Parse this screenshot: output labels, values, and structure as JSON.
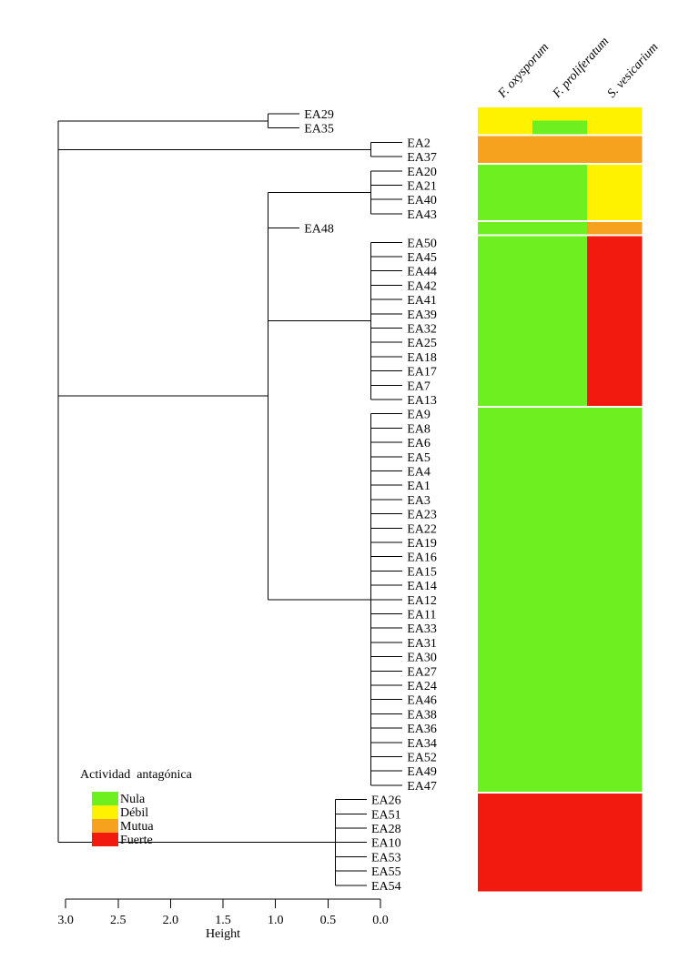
{
  "chart_data": {
    "type": "heatmap",
    "subtype": "dendrogram-with-heatmap",
    "xlabel": "Height",
    "xlim": [
      3.0,
      0.0
    ],
    "x_ticks": [
      "3.0",
      "2.5",
      "2.0",
      "1.5",
      "1.0",
      "0.5",
      "0.0"
    ],
    "x_tick_values": [
      3.0,
      2.5,
      2.0,
      1.5,
      1.0,
      0.5,
      0.0
    ],
    "leaf_hang": 0.3,
    "columns": [
      "F. oxysporum",
      "F. proliferatum",
      "S. vesicarium"
    ],
    "legend": {
      "title": "Actividad  antagónica",
      "placement": "bottom-left",
      "levels": [
        {
          "name": "Nula",
          "color": "#6ef020"
        },
        {
          "name": "Débil",
          "color": "#fff200"
        },
        {
          "name": "Mutua",
          "color": "#f7a21e"
        },
        {
          "name": "Fuerte",
          "color": "#f2190e"
        }
      ]
    },
    "tree": {
      "height": 3.07,
      "children": [
        {
          "height": 1.07,
          "children": [
            "EA29",
            "EA35"
          ]
        },
        {
          "height": 0.09,
          "children": [
            "EA2",
            "EA37"
          ]
        },
        {
          "height": 1.07,
          "children": [
            {
              "height": 0.09,
              "children": [
                "EA20",
                "EA21",
                "EA40",
                "EA43"
              ]
            },
            "EA48",
            {
              "height": 0.09,
              "children": [
                "EA50",
                "EA45",
                "EA44",
                "EA42",
                "EA41",
                "EA39",
                "EA32",
                "EA25",
                "EA18",
                "EA17",
                "EA7",
                "EA13"
              ]
            },
            {
              "height": 0.09,
              "children": [
                "EA9",
                "EA8",
                "EA6",
                "EA5",
                "EA4",
                "EA1",
                "EA3",
                "EA23",
                "EA22",
                "EA19",
                "EA16",
                "EA15",
                "EA14",
                "EA12",
                "EA11",
                "EA33",
                "EA31",
                "EA30",
                "EA27",
                "EA24",
                "EA46",
                "EA38",
                "EA36",
                "EA34",
                "EA52",
                "EA49",
                "EA47"
              ]
            }
          ]
        },
        {
          "height": 0.43,
          "children": [
            "EA26",
            "EA51",
            "EA28",
            "EA10",
            "EA53",
            "EA55",
            "EA54"
          ]
        }
      ]
    },
    "heatmap_groups": [
      {
        "leaves": [
          "EA29",
          "EA35"
        ],
        "values": [
          [
            "Débil",
            "Débil",
            "Débil"
          ],
          [
            "Débil",
            "Nula",
            "Débil"
          ]
        ]
      },
      {
        "leaves": [
          "EA2",
          "EA37"
        ],
        "values": [
          [
            "Mutua",
            "Mutua",
            "Mutua"
          ],
          [
            "Mutua",
            "Mutua",
            "Mutua"
          ]
        ]
      },
      {
        "leaves": [
          "EA20",
          "EA21",
          "EA40",
          "EA43"
        ],
        "all": [
          "Nula",
          "Nula",
          "Débil"
        ]
      },
      {
        "leaves": [
          "EA48"
        ],
        "all": [
          "Nula",
          "Nula",
          "Mutua"
        ]
      },
      {
        "leaves": [
          "EA50",
          "EA45",
          "EA44",
          "EA42",
          "EA41",
          "EA39",
          "EA32",
          "EA25",
          "EA18",
          "EA17",
          "EA7",
          "EA13"
        ],
        "all": [
          "Nula",
          "Nula",
          "Fuerte"
        ]
      },
      {
        "leaves": [
          "EA9",
          "EA8",
          "EA6",
          "EA5",
          "EA4",
          "EA1",
          "EA3",
          "EA23",
          "EA22",
          "EA19",
          "EA16",
          "EA15",
          "EA14",
          "EA12",
          "EA11",
          "EA33",
          "EA31",
          "EA30",
          "EA27",
          "EA24",
          "EA46",
          "EA38",
          "EA36",
          "EA34",
          "EA52",
          "EA49",
          "EA47"
        ],
        "all": [
          "Nula",
          "Nula",
          "Nula"
        ]
      },
      {
        "leaves": [
          "EA26",
          "EA51",
          "EA28",
          "EA10",
          "EA53",
          "EA55",
          "EA54"
        ],
        "all": [
          "Fuerte",
          "Fuerte",
          "Fuerte"
        ]
      }
    ]
  }
}
